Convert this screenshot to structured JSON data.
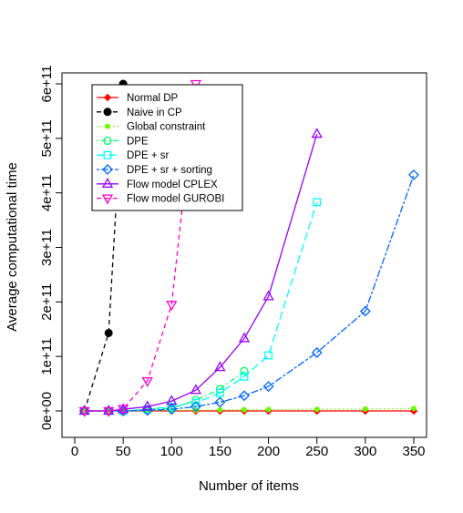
{
  "chart_data": {
    "type": "line",
    "title": "",
    "xlabel": "Number of items",
    "ylabel": "Average computational time",
    "xlim": [
      0,
      360
    ],
    "ylim": [
      0,
      600000000000
    ],
    "xticks": [
      0,
      50,
      100,
      150,
      200,
      250,
      300,
      350
    ],
    "xtick_labels": [
      "0",
      "50",
      "100",
      "150",
      "200",
      "250",
      "300",
      "350"
    ],
    "yticks": [
      0,
      100000000000,
      200000000000,
      300000000000,
      400000000000,
      500000000000,
      600000000000
    ],
    "ytick_labels": [
      "0e+00",
      "1e+11",
      "2e+11",
      "3e+11",
      "4e+11",
      "5e+11",
      "6e+11"
    ],
    "grid": false,
    "legend_position": "top-left",
    "series": [
      {
        "name": "Normal DP",
        "color": "#ff0000",
        "dash": "solid",
        "marker": "diamond-filled",
        "x": [
          10,
          35,
          50,
          75,
          100,
          125,
          150,
          175,
          200,
          250,
          300,
          350
        ],
        "y": [
          0,
          0,
          0,
          0,
          0,
          0,
          0,
          0,
          0,
          0,
          0,
          0
        ]
      },
      {
        "name": "Naive in CP",
        "color": "#000000",
        "dash": "dashed",
        "marker": "circle-filled",
        "x": [
          10,
          35,
          50
        ],
        "y": [
          0,
          143000000000,
          600000000000
        ]
      },
      {
        "name": "Global constraint",
        "color": "#66ff00",
        "dash": "dotted",
        "marker": "circle-filled-small",
        "x": [
          10,
          35,
          50,
          75,
          100,
          125,
          150,
          175,
          200,
          250,
          300,
          350
        ],
        "y": [
          0,
          0,
          0,
          500000000,
          1000000000,
          1500000000,
          2000000000,
          2000000000,
          2500000000,
          3000000000,
          3500000000,
          4500000000
        ]
      },
      {
        "name": "DPE",
        "color": "#00ff66",
        "dash": "dotdash",
        "marker": "circle-open",
        "x": [
          10,
          35,
          50,
          75,
          100,
          125,
          150,
          175
        ],
        "y": [
          0,
          0,
          0,
          3000000000,
          5000000000,
          20000000000,
          40000000000,
          73000000000
        ]
      },
      {
        "name": "DPE + sr",
        "color": "#00ffff",
        "dash": "longdash",
        "marker": "square-open",
        "x": [
          10,
          35,
          50,
          75,
          100,
          125,
          150,
          175,
          200,
          250
        ],
        "y": [
          0,
          0,
          0,
          3000000000,
          8000000000,
          15000000000,
          33000000000,
          63000000000,
          102000000000,
          383000000000
        ]
      },
      {
        "name": "DPE + sr + sorting",
        "color": "#0066ff",
        "dash": "twodash",
        "marker": "diamond-open",
        "x": [
          10,
          35,
          50,
          75,
          100,
          125,
          150,
          175,
          200,
          250,
          300,
          350
        ],
        "y": [
          0,
          0,
          0,
          1000000000,
          3000000000,
          8000000000,
          16000000000,
          28000000000,
          45000000000,
          107000000000,
          183000000000,
          433000000000
        ]
      },
      {
        "name": "Flow model CPLEX",
        "color": "#9900ff",
        "dash": "solid",
        "marker": "triangle-up-open",
        "x": [
          10,
          35,
          50,
          75,
          100,
          125,
          150,
          175,
          200,
          250
        ],
        "y": [
          0,
          0,
          3000000000,
          8000000000,
          18000000000,
          38000000000,
          80000000000,
          133000000000,
          210000000000,
          508000000000
        ]
      },
      {
        "name": "Flow model GUROBI",
        "color": "#ff00cc",
        "dash": "dashed",
        "marker": "triangle-down-open",
        "x": [
          10,
          35,
          50,
          75,
          100,
          125
        ],
        "y": [
          0,
          0,
          4000000000,
          55000000000,
          195000000000,
          600000000000
        ]
      }
    ]
  }
}
